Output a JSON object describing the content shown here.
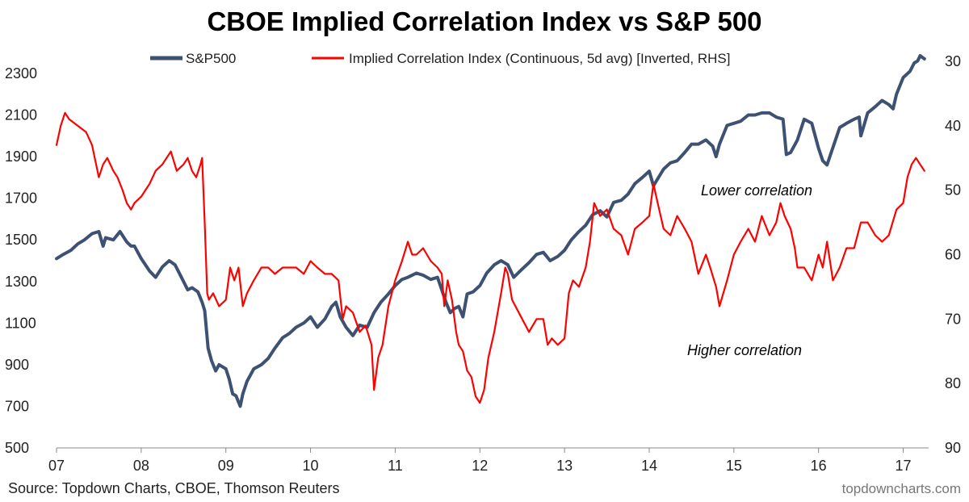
{
  "chart_data": {
    "type": "line",
    "title": "CBOE Implied Correlation Index vs S&P 500",
    "x_ticks": [
      "07",
      "08",
      "09",
      "10",
      "11",
      "12",
      "13",
      "14",
      "15",
      "16",
      "17"
    ],
    "x_range": [
      2007.0,
      2017.3
    ],
    "y_left": {
      "ticks": [
        500,
        700,
        900,
        1100,
        1300,
        1500,
        1700,
        1900,
        2100,
        2300
      ],
      "range": [
        500,
        2420
      ]
    },
    "y_right": {
      "ticks": [
        30,
        40,
        50,
        60,
        70,
        80,
        90
      ],
      "range": [
        90,
        28
      ],
      "inverted": true
    },
    "legend_position": "top",
    "series": [
      {
        "name": "S&P500",
        "axis": "left",
        "color": "#3d5272",
        "x": [
          2007.0,
          2007.08,
          2007.17,
          2007.25,
          2007.33,
          2007.42,
          2007.5,
          2007.55,
          2007.58,
          2007.67,
          2007.75,
          2007.83,
          2007.88,
          2007.92,
          2008.0,
          2008.05,
          2008.1,
          2008.17,
          2008.25,
          2008.33,
          2008.4,
          2008.5,
          2008.55,
          2008.6,
          2008.67,
          2008.72,
          2008.75,
          2008.79,
          2008.83,
          2008.88,
          2008.92,
          2009.0,
          2009.04,
          2009.08,
          2009.12,
          2009.17,
          2009.2,
          2009.25,
          2009.33,
          2009.42,
          2009.5,
          2009.58,
          2009.67,
          2009.75,
          2009.83,
          2009.92,
          2010.0,
          2010.08,
          2010.17,
          2010.25,
          2010.3,
          2010.35,
          2010.42,
          2010.5,
          2010.58,
          2010.67,
          2010.75,
          2010.83,
          2010.92,
          2011.0,
          2011.08,
          2011.15,
          2011.25,
          2011.33,
          2011.42,
          2011.5,
          2011.55,
          2011.6,
          2011.65,
          2011.7,
          2011.75,
          2011.8,
          2011.85,
          2011.92,
          2012.0,
          2012.08,
          2012.17,
          2012.25,
          2012.33,
          2012.4,
          2012.5,
          2012.58,
          2012.67,
          2012.75,
          2012.83,
          2012.92,
          2013.0,
          2013.08,
          2013.17,
          2013.25,
          2013.33,
          2013.42,
          2013.5,
          2013.58,
          2013.67,
          2013.75,
          2013.83,
          2013.92,
          2014.0,
          2014.05,
          2014.08,
          2014.17,
          2014.25,
          2014.33,
          2014.42,
          2014.5,
          2014.58,
          2014.67,
          2014.75,
          2014.79,
          2014.83,
          2014.92,
          2015.0,
          2015.08,
          2015.17,
          2015.25,
          2015.33,
          2015.42,
          2015.5,
          2015.58,
          2015.62,
          2015.67,
          2015.75,
          2015.83,
          2015.92,
          2016.0,
          2016.05,
          2016.1,
          2016.15,
          2016.25,
          2016.33,
          2016.42,
          2016.48,
          2016.5,
          2016.58,
          2016.67,
          2016.75,
          2016.83,
          2016.88,
          2016.92,
          2017.0,
          2017.08,
          2017.13,
          2017.17,
          2017.2,
          2017.25
        ],
        "y": [
          1410,
          1430,
          1450,
          1480,
          1500,
          1530,
          1540,
          1470,
          1510,
          1500,
          1540,
          1490,
          1470,
          1470,
          1410,
          1380,
          1350,
          1320,
          1370,
          1400,
          1380,
          1300,
          1260,
          1270,
          1250,
          1200,
          1160,
          980,
          920,
          870,
          900,
          880,
          830,
          760,
          750,
          700,
          760,
          820,
          880,
          900,
          930,
          980,
          1030,
          1050,
          1080,
          1100,
          1130,
          1080,
          1120,
          1180,
          1200,
          1130,
          1080,
          1040,
          1090,
          1080,
          1150,
          1200,
          1240,
          1280,
          1310,
          1320,
          1340,
          1330,
          1310,
          1320,
          1260,
          1200,
          1150,
          1170,
          1180,
          1130,
          1240,
          1250,
          1280,
          1340,
          1380,
          1400,
          1380,
          1320,
          1360,
          1390,
          1430,
          1440,
          1400,
          1420,
          1450,
          1500,
          1540,
          1570,
          1620,
          1640,
          1610,
          1680,
          1690,
          1720,
          1770,
          1800,
          1830,
          1760,
          1780,
          1840,
          1870,
          1880,
          1920,
          1960,
          1960,
          1980,
          1950,
          1900,
          1960,
          2050,
          2060,
          2070,
          2100,
          2100,
          2110,
          2110,
          2090,
          2080,
          1910,
          1920,
          1980,
          2080,
          2060,
          1940,
          1880,
          1860,
          1920,
          2040,
          2060,
          2080,
          2090,
          2000,
          2110,
          2140,
          2170,
          2150,
          2130,
          2200,
          2280,
          2310,
          2350,
          2360,
          2385,
          2370
        ]
      },
      {
        "name": "Implied Correlation Index (Continuous, 5d avg) [Inverted, RHS]",
        "axis": "right",
        "color": "#ff0000",
        "x": [
          2007.0,
          2007.05,
          2007.1,
          2007.15,
          2007.25,
          2007.35,
          2007.42,
          2007.5,
          2007.55,
          2007.6,
          2007.67,
          2007.72,
          2007.78,
          2007.83,
          2007.88,
          2007.92,
          2008.0,
          2008.05,
          2008.1,
          2008.17,
          2008.25,
          2008.3,
          2008.35,
          2008.42,
          2008.5,
          2008.55,
          2008.6,
          2008.65,
          2008.7,
          2008.72,
          2008.75,
          2008.78,
          2008.8,
          2008.85,
          2008.92,
          2009.0,
          2009.05,
          2009.1,
          2009.15,
          2009.2,
          2009.25,
          2009.33,
          2009.42,
          2009.5,
          2009.58,
          2009.67,
          2009.75,
          2009.83,
          2009.92,
          2010.0,
          2010.08,
          2010.17,
          2010.25,
          2010.33,
          2010.38,
          2010.42,
          2010.5,
          2010.58,
          2010.65,
          2010.72,
          2010.75,
          2010.8,
          2010.85,
          2010.92,
          2011.0,
          2011.08,
          2011.15,
          2011.2,
          2011.25,
          2011.33,
          2011.42,
          2011.5,
          2011.55,
          2011.58,
          2011.62,
          2011.67,
          2011.72,
          2011.75,
          2011.8,
          2011.85,
          2011.9,
          2011.95,
          2012.0,
          2012.05,
          2012.1,
          2012.17,
          2012.25,
          2012.3,
          2012.33,
          2012.38,
          2012.42,
          2012.5,
          2012.58,
          2012.67,
          2012.75,
          2012.8,
          2012.85,
          2012.92,
          2013.0,
          2013.05,
          2013.1,
          2013.17,
          2013.25,
          2013.3,
          2013.35,
          2013.42,
          2013.5,
          2013.58,
          2013.67,
          2013.75,
          2013.83,
          2013.92,
          2014.0,
          2014.05,
          2014.1,
          2014.17,
          2014.25,
          2014.33,
          2014.42,
          2014.5,
          2014.58,
          2014.67,
          2014.72,
          2014.79,
          2014.83,
          2014.92,
          2015.0,
          2015.08,
          2015.17,
          2015.25,
          2015.33,
          2015.42,
          2015.5,
          2015.55,
          2015.6,
          2015.67,
          2015.72,
          2015.75,
          2015.83,
          2015.92,
          2016.0,
          2016.05,
          2016.1,
          2016.17,
          2016.25,
          2016.33,
          2016.42,
          2016.5,
          2016.58,
          2016.67,
          2016.75,
          2016.83,
          2016.92,
          2017.0,
          2017.05,
          2017.1,
          2017.15,
          2017.2,
          2017.25
        ],
        "y": [
          43,
          40,
          38,
          39,
          40,
          41,
          43,
          48,
          46,
          45,
          47,
          48,
          50,
          52,
          53,
          52,
          51,
          50,
          49,
          47,
          46,
          45,
          44,
          47,
          46,
          45,
          47,
          48,
          46,
          45,
          55,
          66,
          67,
          66,
          68,
          67,
          62,
          64,
          62,
          68,
          66,
          64,
          62,
          62,
          63,
          62,
          62,
          62,
          63,
          61,
          62,
          63,
          63,
          64,
          70,
          68,
          69,
          72,
          71,
          74,
          81,
          76,
          74,
          68,
          64,
          61,
          58,
          60,
          60,
          59,
          61,
          62,
          63,
          68,
          64,
          67,
          72,
          74,
          75,
          78,
          79,
          82,
          83,
          81,
          76,
          72,
          66,
          62,
          63,
          67,
          68,
          70,
          72,
          70,
          70,
          74,
          73,
          74,
          73,
          66,
          64,
          65,
          62,
          58,
          52,
          54,
          53,
          56,
          57,
          60,
          56,
          55,
          54,
          49,
          52,
          56,
          57,
          54,
          56,
          58,
          63,
          60,
          62,
          65,
          68,
          64,
          60,
          58,
          56,
          58,
          54,
          57,
          55,
          52,
          54,
          56,
          59,
          62,
          62,
          64,
          60,
          62,
          58,
          64,
          62,
          59,
          59,
          55,
          55,
          57,
          58,
          57,
          53,
          52,
          48,
          46,
          45,
          46,
          47
        ]
      }
    ],
    "annotations": [
      "Lower correlation",
      "Higher correlation"
    ]
  },
  "legend": {
    "sp500": "S&P500",
    "corr": "Implied Correlation Index (Continuous, 5d avg) [Inverted, RHS]"
  },
  "footer": {
    "source": "Source: Topdown Charts, CBOE, Thomson Reuters",
    "brand": "topdowncharts.com"
  }
}
